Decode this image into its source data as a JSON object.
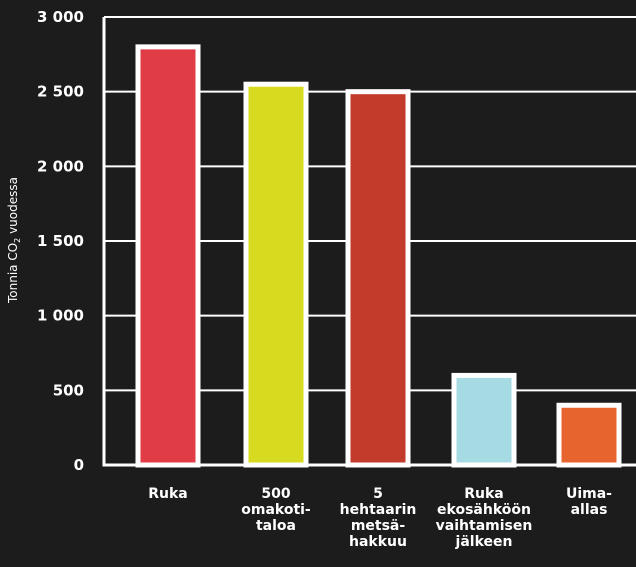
{
  "chart_data": {
    "type": "bar",
    "title": "",
    "xlabel": "",
    "ylabel": {
      "prefix": "Tonnia CO",
      "subscript": "2",
      "suffix": " vuodessa"
    },
    "ylim": [
      0,
      3000
    ],
    "yticks": [
      0,
      500,
      1000,
      1500,
      2000,
      2500,
      3000
    ],
    "ytick_labels": [
      "0",
      "500",
      "1 000",
      "1 500",
      "2 000",
      "2 500",
      "3 000"
    ],
    "grid": true,
    "categories": [
      {
        "lines": [
          "Ruka"
        ],
        "value": 2800,
        "color": "#e03c45"
      },
      {
        "lines": [
          "500",
          "omakoti-",
          "taloa"
        ],
        "value": 2550,
        "color": "#d6db1f"
      },
      {
        "lines": [
          "5",
          "hehtaarin",
          "metsä-",
          "hakkuu"
        ],
        "value": 2500,
        "color": "#c23b2b"
      },
      {
        "lines": [
          "Ruka",
          "ekosähköön",
          "vaihtamisen",
          "jälkeen"
        ],
        "value": 600,
        "color": "#a6dbe3"
      },
      {
        "lines": [
          "Uima-",
          "allas"
        ],
        "value": 400,
        "color": "#e8642f"
      }
    ],
    "colors": {
      "background": "#1c1c1c",
      "axis": "#ffffff",
      "grid": "#ffffff",
      "bar_outline": "#ffffff",
      "text": "#ffffff"
    }
  }
}
